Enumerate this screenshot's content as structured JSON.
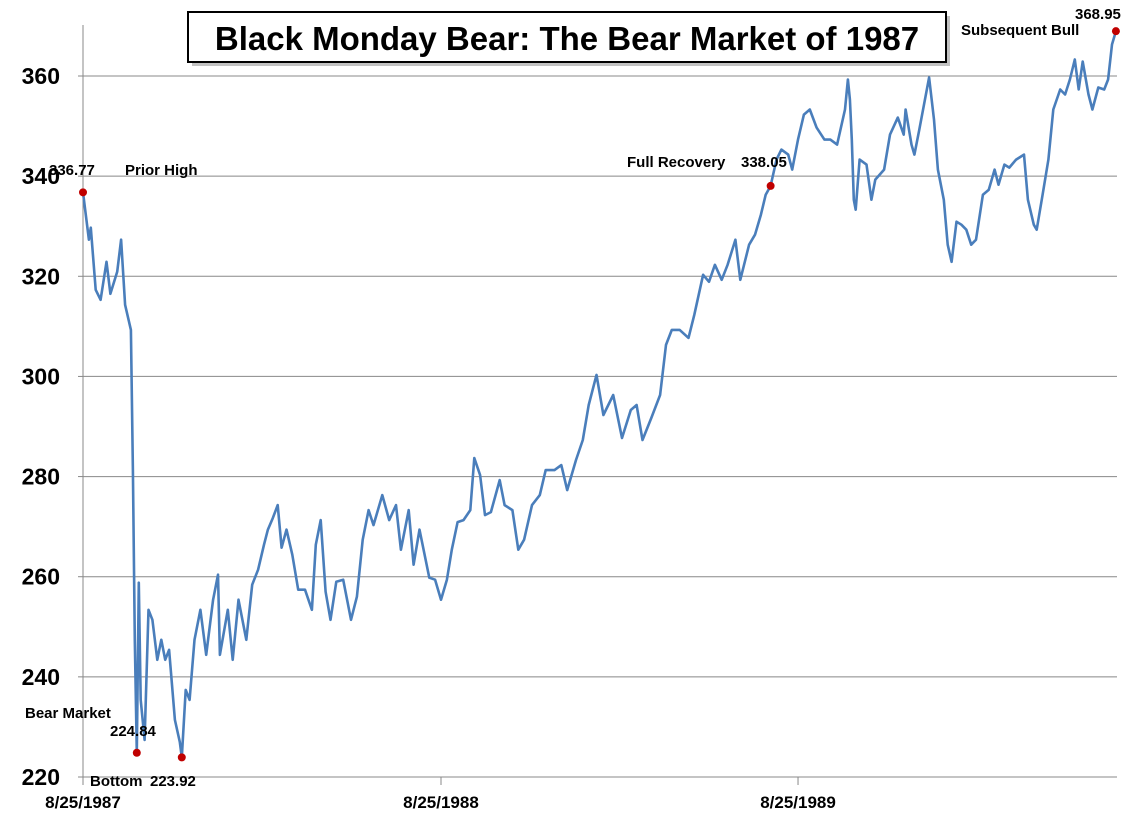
{
  "chart_data": {
    "type": "line",
    "title": "Black Monday Bear: The Bear Market of 1987",
    "xlabel": "",
    "ylabel": "",
    "ylim": [
      220,
      370
    ],
    "xlim": [
      "1987-08-25",
      "1990-07-16"
    ],
    "grid": true,
    "legend": "none",
    "y_ticks": [
      "220",
      "240",
      "260",
      "280",
      "300",
      "320",
      "340",
      "360"
    ],
    "x_ticks": [
      {
        "date": "1987-08-25",
        "label": "8/25/1987"
      },
      {
        "date": "1988-08-25",
        "label": "8/25/1988"
      },
      {
        "date": "1989-08-25",
        "label": "8/25/1989"
      }
    ],
    "line_color": "#4a7ebb",
    "marker_color": "#c00000",
    "series": [
      {
        "points": [
          [
            "1987-08-25",
            336.77
          ],
          [
            "1987-08-31",
            327.3
          ],
          [
            "1987-09-02",
            329.7
          ],
          [
            "1987-09-07",
            317.3
          ],
          [
            "1987-09-12",
            315.3
          ],
          [
            "1987-09-18",
            322.9
          ],
          [
            "1987-09-22",
            316.5
          ],
          [
            "1987-09-29",
            320.9
          ],
          [
            "1987-10-03",
            327.3
          ],
          [
            "1987-10-07",
            314.3
          ],
          [
            "1987-10-13",
            309.3
          ],
          [
            "1987-10-15",
            281.3
          ],
          [
            "1987-10-17",
            247.4
          ],
          [
            "1987-10-19",
            224.84
          ],
          [
            "1987-10-21",
            258.8
          ],
          [
            "1987-10-23",
            235.4
          ],
          [
            "1987-10-27",
            227.4
          ],
          [
            "1987-10-31",
            253.4
          ],
          [
            "1987-11-04",
            251.4
          ],
          [
            "1987-11-09",
            243.4
          ],
          [
            "1987-11-13",
            247.4
          ],
          [
            "1987-11-17",
            243.4
          ],
          [
            "1987-11-21",
            245.4
          ],
          [
            "1987-11-27",
            231.4
          ],
          [
            "1987-12-02",
            227.0
          ],
          [
            "1987-12-04",
            223.92
          ],
          [
            "1987-12-08",
            237.4
          ],
          [
            "1987-12-12",
            235.4
          ],
          [
            "1987-12-17",
            247.4
          ],
          [
            "1987-12-23",
            253.4
          ],
          [
            "1987-12-29",
            244.4
          ],
          [
            "1988-01-05",
            255.4
          ],
          [
            "1988-01-10",
            260.4
          ],
          [
            "1988-01-12",
            244.4
          ],
          [
            "1988-01-20",
            253.4
          ],
          [
            "1988-01-25",
            243.4
          ],
          [
            "1988-01-31",
            255.4
          ],
          [
            "1988-02-08",
            247.4
          ],
          [
            "1988-02-14",
            258.4
          ],
          [
            "1988-02-20",
            261.4
          ],
          [
            "1988-02-26",
            266.4
          ],
          [
            "1988-03-01",
            269.4
          ],
          [
            "1988-03-06",
            271.7
          ],
          [
            "1988-03-11",
            274.3
          ],
          [
            "1988-03-15",
            265.8
          ],
          [
            "1988-03-20",
            269.4
          ],
          [
            "1988-03-26",
            264.4
          ],
          [
            "1988-04-01",
            257.4
          ],
          [
            "1988-04-08",
            257.4
          ],
          [
            "1988-04-15",
            253.4
          ],
          [
            "1988-04-19",
            266.4
          ],
          [
            "1988-04-24",
            271.3
          ],
          [
            "1988-04-29",
            257.0
          ],
          [
            "1988-05-04",
            251.4
          ],
          [
            "1988-05-10",
            259.0
          ],
          [
            "1988-05-17",
            259.4
          ],
          [
            "1988-05-25",
            251.4
          ],
          [
            "1988-05-31",
            256.0
          ],
          [
            "1988-06-06",
            267.4
          ],
          [
            "1988-06-12",
            273.3
          ],
          [
            "1988-06-17",
            270.3
          ],
          [
            "1988-06-26",
            276.3
          ],
          [
            "1988-07-03",
            271.3
          ],
          [
            "1988-07-10",
            274.3
          ],
          [
            "1988-07-15",
            265.4
          ],
          [
            "1988-07-23",
            273.3
          ],
          [
            "1988-07-28",
            262.4
          ],
          [
            "1988-08-03",
            269.4
          ],
          [
            "1988-08-13",
            259.8
          ],
          [
            "1988-08-19",
            259.4
          ],
          [
            "1988-08-25",
            255.4
          ],
          [
            "1988-08-31",
            259.4
          ],
          [
            "1988-09-05",
            265.4
          ],
          [
            "1988-09-11",
            270.9
          ],
          [
            "1988-09-17",
            271.3
          ],
          [
            "1988-09-24",
            273.3
          ],
          [
            "1988-09-28",
            283.7
          ],
          [
            "1988-10-04",
            280.3
          ],
          [
            "1988-10-09",
            272.3
          ],
          [
            "1988-10-15",
            272.9
          ],
          [
            "1988-10-24",
            279.3
          ],
          [
            "1988-10-29",
            274.3
          ],
          [
            "1988-11-06",
            273.3
          ],
          [
            "1988-11-12",
            265.4
          ],
          [
            "1988-11-18",
            267.4
          ],
          [
            "1988-11-26",
            274.3
          ],
          [
            "1988-12-04",
            276.3
          ],
          [
            "1988-12-10",
            281.3
          ],
          [
            "1988-12-19",
            281.3
          ],
          [
            "1988-12-26",
            282.3
          ],
          [
            "1989-01-01",
            277.3
          ],
          [
            "1989-01-10",
            283.3
          ],
          [
            "1989-01-17",
            287.3
          ],
          [
            "1989-01-23",
            294.3
          ],
          [
            "1989-01-31",
            300.3
          ],
          [
            "1989-02-07",
            292.3
          ],
          [
            "1989-02-17",
            296.3
          ],
          [
            "1989-02-26",
            287.7
          ],
          [
            "1989-03-07",
            293.3
          ],
          [
            "1989-03-13",
            294.3
          ],
          [
            "1989-03-19",
            287.3
          ],
          [
            "1989-03-28",
            291.7
          ],
          [
            "1989-04-06",
            296.3
          ],
          [
            "1989-04-12",
            306.3
          ],
          [
            "1989-04-18",
            309.3
          ],
          [
            "1989-04-26",
            309.3
          ],
          [
            "1989-05-05",
            307.7
          ],
          [
            "1989-05-11",
            312.3
          ],
          [
            "1989-05-20",
            320.3
          ],
          [
            "1989-05-26",
            318.9
          ],
          [
            "1989-06-01",
            322.3
          ],
          [
            "1989-06-08",
            319.3
          ],
          [
            "1989-06-14",
            322.3
          ],
          [
            "1989-06-22",
            327.3
          ],
          [
            "1989-06-27",
            319.3
          ],
          [
            "1989-07-06",
            326.3
          ],
          [
            "1989-07-12",
            328.3
          ],
          [
            "1989-07-18",
            332.3
          ],
          [
            "1989-07-23",
            336.3
          ],
          [
            "1989-07-28",
            338.05
          ],
          [
            "1989-08-03",
            343.3
          ],
          [
            "1989-08-08",
            345.3
          ],
          [
            "1989-08-15",
            344.3
          ],
          [
            "1989-08-19",
            341.3
          ],
          [
            "1989-08-25",
            347.3
          ],
          [
            "1989-08-31",
            352.3
          ],
          [
            "1989-09-06",
            353.3
          ],
          [
            "1989-09-13",
            349.7
          ],
          [
            "1989-09-21",
            347.3
          ],
          [
            "1989-09-27",
            347.3
          ],
          [
            "1989-10-04",
            346.3
          ],
          [
            "1989-10-12",
            353.3
          ],
          [
            "1989-10-15",
            359.3
          ],
          [
            "1989-10-17",
            355.3
          ],
          [
            "1989-10-19",
            347.3
          ],
          [
            "1989-10-21",
            335.3
          ],
          [
            "1989-10-23",
            333.3
          ],
          [
            "1989-10-27",
            343.3
          ],
          [
            "1989-11-03",
            342.3
          ],
          [
            "1989-11-08",
            335.3
          ],
          [
            "1989-11-12",
            339.3
          ],
          [
            "1989-11-21",
            341.3
          ],
          [
            "1989-11-27",
            348.3
          ],
          [
            "1989-12-05",
            351.7
          ],
          [
            "1989-12-11",
            348.3
          ],
          [
            "1989-12-13",
            353.3
          ],
          [
            "1989-12-19",
            346.3
          ],
          [
            "1989-12-22",
            344.3
          ],
          [
            "1989-12-27",
            349.3
          ],
          [
            "1990-01-06",
            359.7
          ],
          [
            "1990-01-11",
            351.3
          ],
          [
            "1990-01-15",
            341.3
          ],
          [
            "1990-01-21",
            335.3
          ],
          [
            "1990-01-25",
            326.3
          ],
          [
            "1990-01-29",
            322.9
          ],
          [
            "1990-02-03",
            330.9
          ],
          [
            "1990-02-08",
            330.3
          ],
          [
            "1990-02-13",
            329.3
          ],
          [
            "1990-02-18",
            326.3
          ],
          [
            "1990-02-23",
            327.3
          ],
          [
            "1990-03-02",
            336.3
          ],
          [
            "1990-03-08",
            337.3
          ],
          [
            "1990-03-14",
            341.3
          ],
          [
            "1990-03-18",
            338.3
          ],
          [
            "1990-03-24",
            342.3
          ],
          [
            "1990-03-29",
            341.7
          ],
          [
            "1990-04-05",
            343.3
          ],
          [
            "1990-04-13",
            344.3
          ],
          [
            "1990-04-17",
            335.3
          ],
          [
            "1990-04-23",
            330.3
          ],
          [
            "1990-04-26",
            329.3
          ],
          [
            "1990-05-02",
            336.3
          ],
          [
            "1990-05-08",
            343.3
          ],
          [
            "1990-05-13",
            353.3
          ],
          [
            "1990-05-20",
            357.3
          ],
          [
            "1990-05-25",
            356.3
          ],
          [
            "1990-05-30",
            359.3
          ],
          [
            "1990-06-04",
            363.3
          ],
          [
            "1990-06-08",
            357.3
          ],
          [
            "1990-06-12",
            362.9
          ],
          [
            "1990-06-18",
            356.3
          ],
          [
            "1990-06-22",
            353.3
          ],
          [
            "1990-06-28",
            357.7
          ],
          [
            "1990-07-04",
            357.3
          ],
          [
            "1990-07-08",
            359.3
          ],
          [
            "1990-07-12",
            366.3
          ],
          [
            "1990-07-16",
            368.95
          ]
        ]
      }
    ],
    "markers": [
      {
        "date": "1987-08-25",
        "value": 336.77
      },
      {
        "date": "1987-10-19",
        "value": 224.84
      },
      {
        "date": "1987-12-04",
        "value": 223.92
      },
      {
        "date": "1989-07-28",
        "value": 338.05
      },
      {
        "date": "1990-07-16",
        "value": 368.95
      }
    ],
    "annotations": {
      "prior_high_value": "336.77",
      "prior_high_label": "Prior High",
      "bear_market_label": "Bear Market",
      "bear_market_value": "224.84",
      "bottom_label": "Bottom",
      "bottom_value": "223.92",
      "full_recovery_label": "Full Recovery",
      "full_recovery_value": "338.05",
      "subsequent_bull_label": "Subsequent Bull",
      "subsequent_bull_value": "368.95"
    }
  }
}
